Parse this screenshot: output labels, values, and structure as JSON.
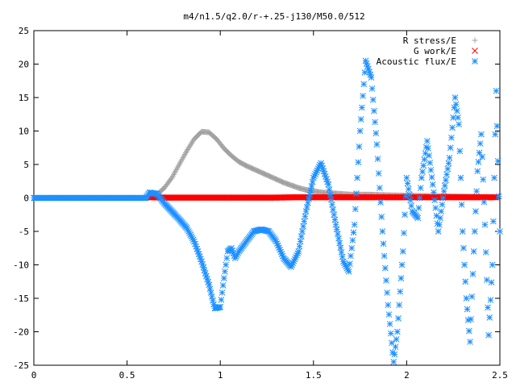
{
  "chart_data": {
    "type": "scatter",
    "title": "m4/n1.5/q2.0/r-+.25-j130/M50.0/512",
    "xlabel": "",
    "ylabel": "",
    "xlim": [
      0,
      2.5
    ],
    "ylim": [
      -25,
      25
    ],
    "x_ticks": [
      "0",
      "0.5",
      "1",
      "1.5",
      "2",
      "2.5"
    ],
    "y_ticks": [
      "25",
      "20",
      "15",
      "10",
      "5",
      "0",
      "-5",
      "-10",
      "-15",
      "-20",
      "-25"
    ],
    "grid": false,
    "legend_position": "top-right",
    "series": [
      {
        "name": "R stress/E",
        "marker": "plus",
        "color": "#a0a0a0",
        "points": [
          [
            0.62,
            0.1
          ],
          [
            0.66,
            0.5
          ],
          [
            0.7,
            1.5
          ],
          [
            0.74,
            3.0
          ],
          [
            0.78,
            5.0
          ],
          [
            0.82,
            7.0
          ],
          [
            0.86,
            8.8
          ],
          [
            0.9,
            9.9
          ],
          [
            0.94,
            9.8
          ],
          [
            0.98,
            8.8
          ],
          [
            1.02,
            7.4
          ],
          [
            1.06,
            6.3
          ],
          [
            1.1,
            5.4
          ],
          [
            1.14,
            4.8
          ],
          [
            1.18,
            4.3
          ],
          [
            1.22,
            3.8
          ],
          [
            1.26,
            3.3
          ],
          [
            1.3,
            2.8
          ],
          [
            1.34,
            2.3
          ],
          [
            1.38,
            1.9
          ],
          [
            1.42,
            1.5
          ],
          [
            1.46,
            1.2
          ],
          [
            1.5,
            1.0
          ],
          [
            1.55,
            0.8
          ],
          [
            1.6,
            0.7
          ],
          [
            1.65,
            0.6
          ],
          [
            1.7,
            0.5
          ],
          [
            1.8,
            0.5
          ],
          [
            1.9,
            0.4
          ],
          [
            2.0,
            0.35
          ],
          [
            2.1,
            0.3
          ],
          [
            2.2,
            0.25
          ],
          [
            2.3,
            0.2
          ],
          [
            2.4,
            0.15
          ],
          [
            2.48,
            0.1
          ]
        ]
      },
      {
        "name": "G work/E",
        "marker": "cross",
        "color": "#ff0000",
        "points": [
          [
            0.62,
            0.1
          ],
          [
            0.7,
            0.05
          ],
          [
            0.8,
            0.05
          ],
          [
            0.9,
            0.05
          ],
          [
            1.0,
            0.05
          ],
          [
            1.1,
            0.05
          ],
          [
            1.2,
            0.05
          ],
          [
            1.3,
            0.05
          ],
          [
            1.4,
            0.1
          ],
          [
            1.5,
            0.1
          ],
          [
            1.6,
            0.1
          ],
          [
            1.7,
            0.1
          ],
          [
            1.8,
            0.1
          ],
          [
            1.9,
            0.1
          ],
          [
            2.0,
            0.1
          ],
          [
            2.1,
            0.1
          ],
          [
            2.2,
            0.1
          ],
          [
            2.3,
            0.1
          ],
          [
            2.4,
            0.1
          ],
          [
            2.48,
            0.1
          ]
        ]
      },
      {
        "name": "Acoustic flux/E",
        "marker": "star",
        "color": "#1e90ff",
        "points": [
          [
            0.0,
            0
          ],
          [
            0.1,
            0
          ],
          [
            0.2,
            0
          ],
          [
            0.3,
            0
          ],
          [
            0.4,
            0
          ],
          [
            0.5,
            0
          ],
          [
            0.6,
            0
          ],
          [
            0.62,
            0.8
          ],
          [
            0.66,
            0.6
          ],
          [
            0.7,
            -0.8
          ],
          [
            0.74,
            -2.0
          ],
          [
            0.78,
            -3.2
          ],
          [
            0.82,
            -4.5
          ],
          [
            0.86,
            -6.5
          ],
          [
            0.9,
            -9.5
          ],
          [
            0.94,
            -13.0
          ],
          [
            0.97,
            -16.5
          ],
          [
            1.0,
            -16.3
          ],
          [
            1.02,
            -12.0
          ],
          [
            1.04,
            -8.0
          ],
          [
            1.06,
            -7.5
          ],
          [
            1.08,
            -9.0
          ],
          [
            1.1,
            -8.0
          ],
          [
            1.14,
            -6.5
          ],
          [
            1.18,
            -5.0
          ],
          [
            1.22,
            -4.7
          ],
          [
            1.26,
            -5.0
          ],
          [
            1.3,
            -6.5
          ],
          [
            1.34,
            -9.0
          ],
          [
            1.38,
            -10.3
          ],
          [
            1.42,
            -8.0
          ],
          [
            1.46,
            -2.0
          ],
          [
            1.5,
            3.0
          ],
          [
            1.54,
            5.2
          ],
          [
            1.58,
            2.0
          ],
          [
            1.62,
            -4.0
          ],
          [
            1.66,
            -9.5
          ],
          [
            1.69,
            -11.0
          ],
          [
            1.72,
            -4.0
          ],
          [
            1.75,
            10.0
          ],
          [
            1.78,
            20.5
          ],
          [
            1.81,
            18.0
          ],
          [
            1.84,
            8.0
          ],
          [
            1.87,
            -5.0
          ],
          [
            1.9,
            -16.0
          ],
          [
            1.93,
            -24.5
          ],
          [
            1.95,
            -20.0
          ],
          [
            1.98,
            -8.0
          ],
          [
            2.0,
            3.0
          ],
          [
            2.03,
            -2.0
          ],
          [
            2.06,
            -3.0
          ],
          [
            2.08,
            3.0
          ],
          [
            2.11,
            8.5
          ],
          [
            2.14,
            2.0
          ],
          [
            2.17,
            -5.0
          ],
          [
            2.2,
            1.0
          ],
          [
            2.23,
            6.0
          ],
          [
            2.26,
            15.0
          ],
          [
            2.28,
            11.0
          ],
          [
            2.3,
            -5.0
          ],
          [
            2.32,
            -15.0
          ],
          [
            2.34,
            -21.5
          ],
          [
            2.36,
            -8.0
          ],
          [
            2.38,
            4.0
          ],
          [
            2.4,
            9.5
          ],
          [
            2.42,
            -4.0
          ],
          [
            2.44,
            -20.5
          ],
          [
            2.46,
            -10.0
          ],
          [
            2.48,
            16.0
          ],
          [
            2.5,
            -5.0
          ]
        ]
      }
    ]
  }
}
